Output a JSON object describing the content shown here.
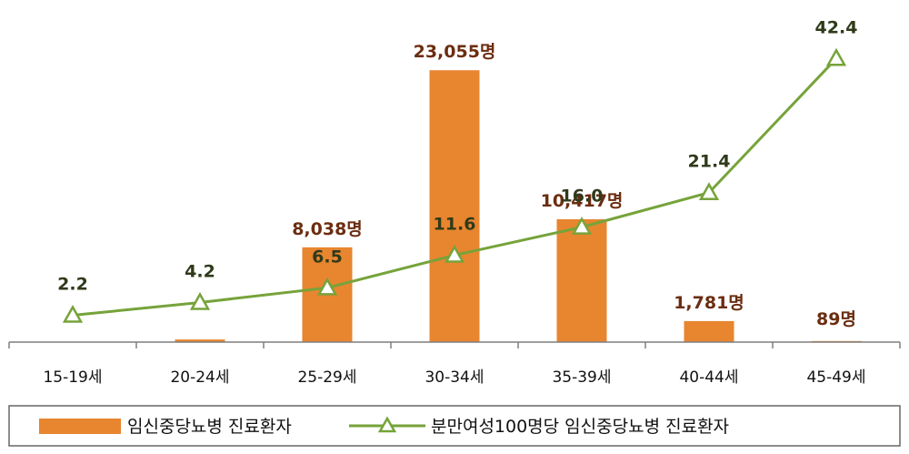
{
  "chart_data": {
    "type": "bar",
    "categories": [
      "15-19세",
      "20-24세",
      "25-29세",
      "30-34세",
      "35-39세",
      "40-44세",
      "45-49세"
    ],
    "series": [
      {
        "name": "임신중당뇨병 진료환자",
        "type": "bar",
        "color": "#E8852F",
        "values": [
          0,
          220,
          8038,
          23055,
          10417,
          1781,
          89
        ],
        "labels": [
          "",
          "",
          "8,038명",
          "23,055명",
          "10,417명",
          "1,781명",
          "89명"
        ]
      },
      {
        "name": "분만여성100명당 임신중당뇨병 진료환자",
        "type": "line",
        "color": "#76A33A",
        "values": [
          2.2,
          4.2,
          6.5,
          11.6,
          16.0,
          21.4,
          42.4
        ],
        "labels": [
          "2.2",
          "4.2",
          "6.5",
          "11.6",
          "16.0",
          "21.4",
          "42.4"
        ]
      }
    ],
    "bar_ylim": [
      0,
      25000
    ],
    "line_ylim": [
      -2,
      47
    ],
    "legend_position": "bottom",
    "grid": false
  }
}
